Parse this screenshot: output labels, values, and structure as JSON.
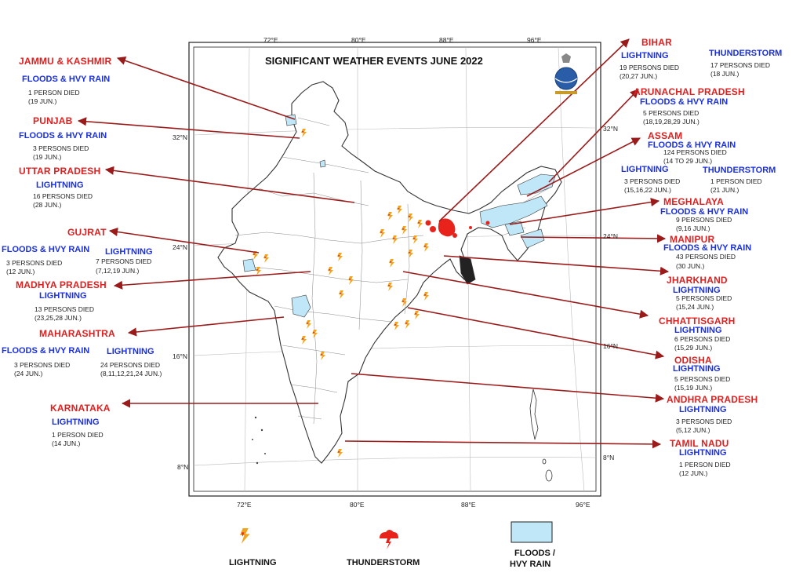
{
  "map": {
    "title": "SIGNIFICANT WEATHER EVENTS JUNE 2022",
    "lon_top": [
      "72°E",
      "80°E",
      "88°E",
      "96°E"
    ],
    "lon_bottom": [
      "72°E",
      "80°E",
      "88°E",
      "96°E"
    ],
    "lat_left": [
      "32°N",
      "24°N",
      "16°N",
      "8°N"
    ],
    "lat_right": [
      "32°N",
      "24°N",
      "16°N",
      "8°N"
    ]
  },
  "colors": {
    "state": "#e02020",
    "event": "#1a2fe0",
    "arrow": "#9b1b1b",
    "flood": "#bfe7f7"
  },
  "left_panel": {
    "jk": {
      "state": "JAMMU & KASHMIR",
      "event": "FLOODS & HVY RAIN",
      "d1": "1 PERSON DIED",
      "d2": "(19 JUN.)"
    },
    "punjab": {
      "state": "PUNJAB",
      "event": "FLOODS & HVY RAIN",
      "d1": "3 PERSONS DIED",
      "d2": "(19 JUN.)"
    },
    "up": {
      "state": "UTTAR PRADESH",
      "event": "LIGHTNING",
      "d1": "16 PERSONS DIED",
      "d2": "(28 JUN.)"
    },
    "gujrat": {
      "state": "GUJRAT",
      "event1": "FLOODS & HVY RAIN",
      "e1d1": "3 PERSONS DIED",
      "e1d2": "(12 JUN.)",
      "event2": "LIGHTNING",
      "e2d1": "7 PERSONS DIED",
      "e2d2": "(7,12,19 JUN.)"
    },
    "mp": {
      "state": "MADHYA PRADESH",
      "event": "LIGHTNING",
      "d1": "13 PERSONS DIED",
      "d2": "(23,25,28 JUN.)"
    },
    "maha": {
      "state": "MAHARASHTRA",
      "event1": "FLOODS & HVY RAIN",
      "e1d1": "3 PERSONS DIED",
      "e1d2": "(24 JUN.)",
      "event2": "LIGHTNING",
      "e2d1": "24 PERSONS DIED",
      "e2d2": "(8,11,12,21,24 JUN.)"
    },
    "karnataka": {
      "state": "KARNATAKA",
      "event": "LIGHTNING",
      "d1": "1 PERSON DIED",
      "d2": "(14 JUN.)"
    }
  },
  "right_panel": {
    "bihar": {
      "state": "BIHAR",
      "event1": "LIGHTNING",
      "e1d1": "19 PERSONS DIED",
      "e1d2": "(20,27 JUN.)",
      "event2": "THUNDERSTORM",
      "e2d1": "17 PERSONS DIED",
      "e2d2": "(18 JUN.)"
    },
    "arunachal": {
      "state": "ARUNACHAL PRADESH",
      "event": "FLOODS & HVY RAIN",
      "d1": "5 PERSONS DIED",
      "d2": "(18,19,28,29 JUN.)"
    },
    "assam": {
      "state": "ASSAM",
      "event": "FLOODS & HVY RAIN",
      "d1": "124 PERSONS DIED",
      "d2": "(14 TO 29 JUN.)",
      "event2": "LIGHTNING",
      "e2d1": "3 PERSONS DIED",
      "e2d2": "(15,16,22 JUN.)",
      "event3": "THUNDERSTORM",
      "e3d1": "1 PERSON DIED",
      "e3d2": "(21 JUN.)"
    },
    "meghalaya": {
      "state": "MEGHALAYA",
      "event": "FLOODS & HVY RAIN",
      "d1": "9 PERSONS DIED",
      "d2": "(9,16 JUN.)"
    },
    "manipur": {
      "state": "MANIPUR",
      "event": "FLOODS & HVY RAIN",
      "d1": "43 PERSONS DIED",
      "d2": "(30 JUN.)"
    },
    "jharkhand": {
      "state": "JHARKHAND",
      "event": "LIGHTNING",
      "d1": "5 PERSONS DIED",
      "d2": "(15,24 JUN.)"
    },
    "chhattisgarh": {
      "state": "CHHATTISGARH",
      "event": "LIGHTNING",
      "d1": "6 PERSONS DIED",
      "d2": "(15,29 JUN.)"
    },
    "odisha": {
      "state": "ODISHA",
      "event": "LIGHTNING",
      "d1": "5 PERSONS DIED",
      "d2": "(15,19 JUN.)"
    },
    "ap": {
      "state": "ANDHRA PRADESH",
      "event": "LIGHTNING",
      "d1": "3 PERSONS DIED",
      "d2": "(5,12 JUN.)"
    },
    "tn": {
      "state": "TAMIL NADU",
      "event": "LIGHTNING",
      "d1": "1 PERSON DIED",
      "d2": "(12 JUN.)"
    }
  },
  "legend": {
    "lightning": "LIGHTNING",
    "lightning_icon": "lightning-icon",
    "thunderstorm": "THUNDERSTORM",
    "thunderstorm_icon": "thunderstorm-cloud-icon",
    "flood_line1": "FLOODS /",
    "flood_line2": "HVY RAIN"
  }
}
